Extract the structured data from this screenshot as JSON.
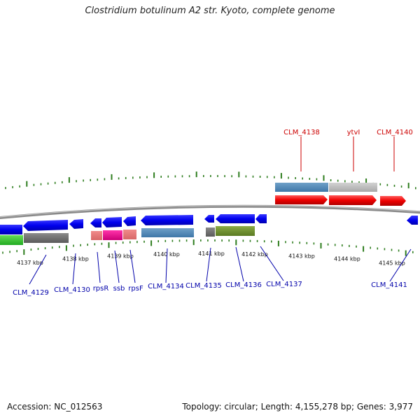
{
  "title": "Clostridium botulinum A2 str. Kyoto, complete genome",
  "footer": {
    "accession": "Accession: NC_012563",
    "summary": "Topology: circular; Length: 4,155,278 bp; Genes: 3,977"
  },
  "colors": {
    "forward_label": "#cc0000",
    "reverse_label": "#0000aa",
    "tick": "#2e7d1e",
    "backbone": "#888888"
  },
  "scale_labels": [
    "4137 kbp",
    "4138 kbp",
    "4139 kbp",
    "4140 kbp",
    "4141 kbp",
    "4142 kbp",
    "4143 kbp",
    "4144 kbp",
    "4145 kbp"
  ],
  "forward_genes": [
    {
      "label": "CLM_4138",
      "color": "#cc0000"
    },
    {
      "label": "ytvI",
      "color": "#cc0000"
    },
    {
      "label": "CLM_4140",
      "color": "#cc0000"
    }
  ],
  "reverse_genes": [
    {
      "label": "CLM_4129",
      "color": "#0000aa"
    },
    {
      "label": "CLM_4130",
      "color": "#0000aa"
    },
    {
      "label": "rpsR",
      "color": "#0000aa"
    },
    {
      "label": "ssb",
      "color": "#0000aa"
    },
    {
      "label": "rpsF",
      "color": "#0000aa"
    },
    {
      "label": "CLM_4134",
      "color": "#0000aa"
    },
    {
      "label": "CLM_4135",
      "color": "#0000aa"
    },
    {
      "label": "CLM_4136",
      "color": "#0000aa"
    },
    {
      "label": "CLM_4137",
      "color": "#0000aa"
    },
    {
      "label": "CLM_4141",
      "color": "#0000aa"
    }
  ]
}
